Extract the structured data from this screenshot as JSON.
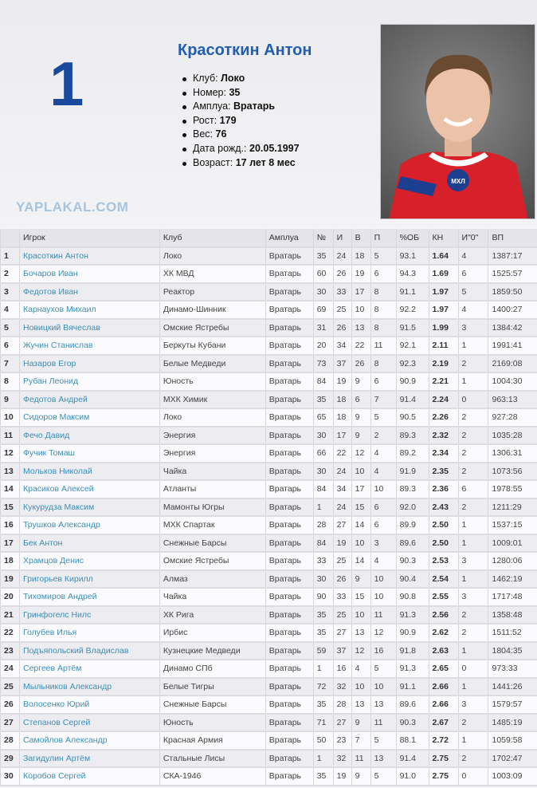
{
  "player": {
    "rank": "1",
    "name": "Красоткин Антон",
    "info": [
      {
        "label": "Клуб: ",
        "value": "Локо"
      },
      {
        "label": "Номер: ",
        "value": "35"
      },
      {
        "label": "Амплуа: ",
        "value": "Вратарь"
      },
      {
        "label": "Рост: ",
        "value": "179"
      },
      {
        "label": "Вес: ",
        "value": "76"
      },
      {
        "label": "Дата рожд.: ",
        "value": "20.05.1997"
      },
      {
        "label": "Возраст: ",
        "value": "17 лет 8 мес"
      }
    ],
    "jersey_text": "МХЛ"
  },
  "table": {
    "columns": [
      "",
      "Игрок",
      "Клуб",
      "Амплуа",
      "№",
      "И",
      "В",
      "П",
      "%ОБ",
      "КН",
      "И\"0\"",
      "ВП"
    ],
    "rows": [
      [
        "1",
        "Красоткин Антон",
        "Локо",
        "Вратарь",
        "35",
        "24",
        "18",
        "5",
        "93.1",
        "1.64",
        "4",
        "1387:17"
      ],
      [
        "2",
        "Бочаров Иван",
        "ХК МВД",
        "Вратарь",
        "60",
        "26",
        "19",
        "6",
        "94.3",
        "1.69",
        "6",
        "1525:57"
      ],
      [
        "3",
        "Федотов Иван",
        "Реактор",
        "Вратарь",
        "30",
        "33",
        "17",
        "8",
        "91.1",
        "1.97",
        "5",
        "1859:50"
      ],
      [
        "4",
        "Карнаухов Михаил",
        "Динамо-Шинник",
        "Вратарь",
        "69",
        "25",
        "10",
        "8",
        "92.2",
        "1.97",
        "4",
        "1400:27"
      ],
      [
        "5",
        "Новицкий Вячеслав",
        "Омские Ястребы",
        "Вратарь",
        "31",
        "26",
        "13",
        "8",
        "91.5",
        "1.99",
        "3",
        "1384:42"
      ],
      [
        "6",
        "Жучин Станислав",
        "Беркуты Кубани",
        "Вратарь",
        "20",
        "34",
        "22",
        "11",
        "92.1",
        "2.11",
        "1",
        "1991:41"
      ],
      [
        "7",
        "Назаров Егор",
        "Белые Медведи",
        "Вратарь",
        "73",
        "37",
        "26",
        "8",
        "92.3",
        "2.19",
        "2",
        "2169:08"
      ],
      [
        "8",
        "Рубан Леонид",
        "Юность",
        "Вратарь",
        "84",
        "19",
        "9",
        "6",
        "90.9",
        "2.21",
        "1",
        "1004:30"
      ],
      [
        "9",
        "Федотов Андрей",
        "МХК Химик",
        "Вратарь",
        "35",
        "18",
        "6",
        "7",
        "91.4",
        "2.24",
        "0",
        "963:13"
      ],
      [
        "10",
        "Сидоров Максим",
        "Локо",
        "Вратарь",
        "65",
        "18",
        "9",
        "5",
        "90.5",
        "2.26",
        "2",
        "927:28"
      ],
      [
        "11",
        "Фечо Давид",
        "Энергия",
        "Вратарь",
        "30",
        "17",
        "9",
        "2",
        "89.3",
        "2.32",
        "2",
        "1035:28"
      ],
      [
        "12",
        "Фучик Томаш",
        "Энергия",
        "Вратарь",
        "66",
        "22",
        "12",
        "4",
        "89.2",
        "2.34",
        "2",
        "1306:31"
      ],
      [
        "13",
        "Мольков Николай",
        "Чайка",
        "Вратарь",
        "30",
        "24",
        "10",
        "4",
        "91.9",
        "2.35",
        "2",
        "1073:56"
      ],
      [
        "14",
        "Красиков Алексей",
        "Атланты",
        "Вратарь",
        "84",
        "34",
        "17",
        "10",
        "89.3",
        "2.36",
        "6",
        "1978:55"
      ],
      [
        "15",
        "Кукурудза Максим",
        "Мамонты Югры",
        "Вратарь",
        "1",
        "24",
        "15",
        "6",
        "92.0",
        "2.43",
        "2",
        "1211:29"
      ],
      [
        "16",
        "Трушков Александр",
        "МХК Спартак",
        "Вратарь",
        "28",
        "27",
        "14",
        "6",
        "89.9",
        "2.50",
        "1",
        "1537:15"
      ],
      [
        "17",
        "Бек Антон",
        "Снежные Барсы",
        "Вратарь",
        "84",
        "19",
        "10",
        "3",
        "89.6",
        "2.50",
        "1",
        "1009:01"
      ],
      [
        "18",
        "Храмцов Денис",
        "Омские Ястребы",
        "Вратарь",
        "33",
        "25",
        "14",
        "4",
        "90.3",
        "2.53",
        "3",
        "1280:06"
      ],
      [
        "19",
        "Григорьев Кирилл",
        "Алмаз",
        "Вратарь",
        "30",
        "26",
        "9",
        "10",
        "90.4",
        "2.54",
        "1",
        "1462:19"
      ],
      [
        "20",
        "Тихомиров Андрей",
        "Чайка",
        "Вратарь",
        "90",
        "33",
        "15",
        "10",
        "90.8",
        "2.55",
        "3",
        "1717:48"
      ],
      [
        "21",
        "Гринфогелс Нилс",
        "ХК Рига",
        "Вратарь",
        "35",
        "25",
        "10",
        "11",
        "91.3",
        "2.56",
        "2",
        "1358:48"
      ],
      [
        "22",
        "Голубев Илья",
        "Ирбис",
        "Вратарь",
        "35",
        "27",
        "13",
        "12",
        "90.9",
        "2.62",
        "2",
        "1511:52"
      ],
      [
        "23",
        "Подъяпольский Владислав",
        "Кузнецкие Медведи",
        "Вратарь",
        "59",
        "37",
        "12",
        "16",
        "91.8",
        "2.63",
        "1",
        "1804:35"
      ],
      [
        "24",
        "Сергеев Артём",
        "Динамо СПб",
        "Вратарь",
        "1",
        "16",
        "4",
        "5",
        "91.3",
        "2.65",
        "0",
        "973:33"
      ],
      [
        "25",
        "Мыльников Александр",
        "Белые Тигры",
        "Вратарь",
        "72",
        "32",
        "10",
        "10",
        "91.1",
        "2.66",
        "1",
        "1441:26"
      ],
      [
        "26",
        "Волосенко Юрий",
        "Снежные Барсы",
        "Вратарь",
        "35",
        "28",
        "13",
        "13",
        "89.6",
        "2.66",
        "3",
        "1579:57"
      ],
      [
        "27",
        "Степанов Сергей",
        "Юность",
        "Вратарь",
        "71",
        "27",
        "9",
        "11",
        "90.3",
        "2.67",
        "2",
        "1485:19"
      ],
      [
        "28",
        "Самойлов Александр",
        "Красная Армия",
        "Вратарь",
        "50",
        "23",
        "7",
        "5",
        "88.1",
        "2.72",
        "1",
        "1059:58"
      ],
      [
        "29",
        "Загидулин Артём",
        "Стальные Лисы",
        "Вратарь",
        "1",
        "32",
        "11",
        "13",
        "91.4",
        "2.75",
        "2",
        "1702:47"
      ],
      [
        "30",
        "Коробов Сергей",
        "СКА-1946",
        "Вратарь",
        "35",
        "19",
        "9",
        "5",
        "91.0",
        "2.75",
        "0",
        "1003:09"
      ]
    ]
  },
  "watermark": "YAPLAKAL.COM",
  "colors": {
    "title": "#1f5eb0",
    "rank": "#1a4aa0",
    "link": "#3a8fb8"
  }
}
